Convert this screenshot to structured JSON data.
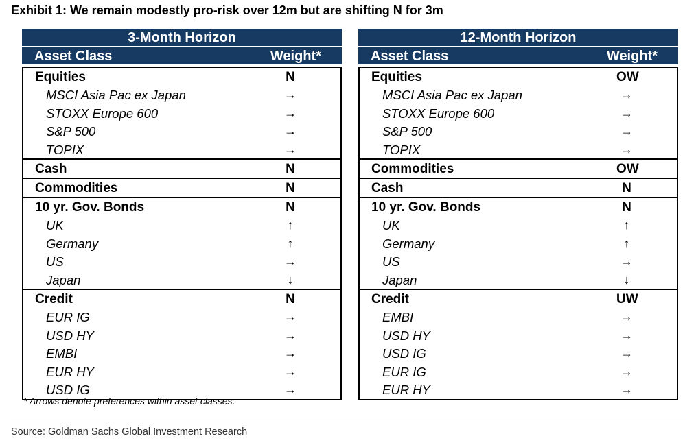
{
  "title": "Exhibit 1: We remain modestly pro-risk over 12m but are shifting N for 3m",
  "panels": [
    {
      "horizon": "3-Month Horizon",
      "col_asset": "Asset Class",
      "col_weight": "Weight*",
      "groups": [
        {
          "name": "Equities",
          "weight": "N",
          "items": [
            {
              "name": "MSCI Asia Pac ex Japan",
              "arrow": "→"
            },
            {
              "name": "STOXX Europe 600",
              "arrow": "→"
            },
            {
              "name": "S&P 500",
              "arrow": "→"
            },
            {
              "name": "TOPIX",
              "arrow": "→"
            }
          ]
        },
        {
          "name": "Cash",
          "weight": "N",
          "items": []
        },
        {
          "name": "Commodities",
          "weight": "N",
          "items": []
        },
        {
          "name": "10 yr. Gov. Bonds",
          "weight": "N",
          "items": [
            {
              "name": "UK",
              "arrow": "↑"
            },
            {
              "name": "Germany",
              "arrow": "↑"
            },
            {
              "name": "US",
              "arrow": "→"
            },
            {
              "name": "Japan",
              "arrow": "↓"
            }
          ]
        },
        {
          "name": "Credit",
          "weight": "N",
          "items": [
            {
              "name": "EUR IG",
              "arrow": "→"
            },
            {
              "name": "USD HY",
              "arrow": "→"
            },
            {
              "name": "EMBI",
              "arrow": "→"
            },
            {
              "name": "EUR HY",
              "arrow": "→"
            },
            {
              "name": "USD IG",
              "arrow": "→"
            }
          ]
        }
      ]
    },
    {
      "horizon": "12-Month Horizon",
      "col_asset": "Asset Class",
      "col_weight": "Weight*",
      "groups": [
        {
          "name": "Equities",
          "weight": "OW",
          "items": [
            {
              "name": "MSCI Asia Pac ex Japan",
              "arrow": "→"
            },
            {
              "name": "STOXX Europe 600",
              "arrow": "→"
            },
            {
              "name": "S&P 500",
              "arrow": "→"
            },
            {
              "name": "TOPIX",
              "arrow": "→"
            }
          ]
        },
        {
          "name": "Commodities",
          "weight": "OW",
          "items": []
        },
        {
          "name": "Cash",
          "weight": "N",
          "items": []
        },
        {
          "name": "10 yr. Gov. Bonds",
          "weight": "N",
          "items": [
            {
              "name": "UK",
              "arrow": "↑"
            },
            {
              "name": "Germany",
              "arrow": "↑"
            },
            {
              "name": "US",
              "arrow": "→"
            },
            {
              "name": "Japan",
              "arrow": "↓"
            }
          ]
        },
        {
          "name": "Credit",
          "weight": "UW",
          "items": [
            {
              "name": "EMBI",
              "arrow": "→"
            },
            {
              "name": "USD HY",
              "arrow": "→"
            },
            {
              "name": "USD IG",
              "arrow": "→"
            },
            {
              "name": "EUR IG",
              "arrow": "→"
            },
            {
              "name": "EUR HY",
              "arrow": "→"
            }
          ]
        }
      ]
    }
  ],
  "footnote": "* Arrows denote preferences within asset classes.",
  "source": "Source: Goldman Sachs Global Investment Research"
}
